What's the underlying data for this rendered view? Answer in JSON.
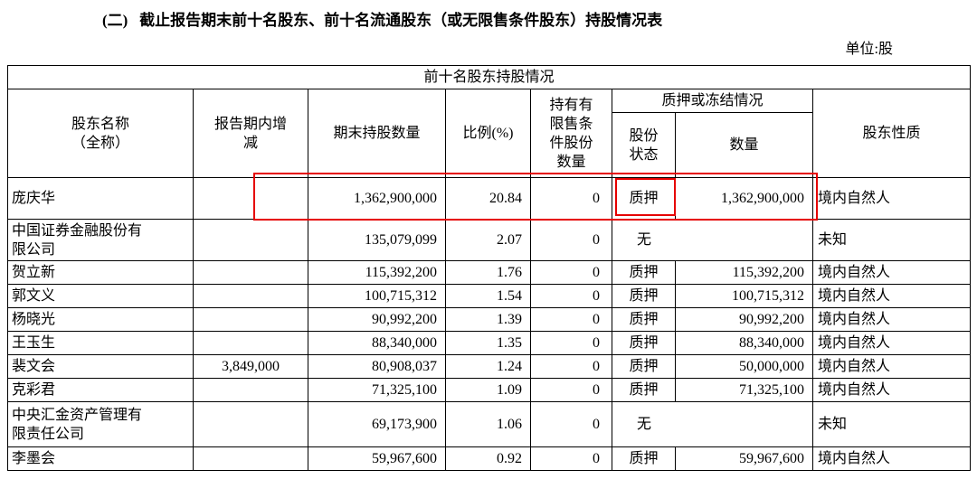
{
  "page": {
    "title": "(二)   截止报告期末前十名股东、前十名流通股东（或无限售条件股东）持股情况表",
    "unit_label": "单位:股"
  },
  "table": {
    "caption": "前十名股东持股情况",
    "headers": {
      "name": "股东名称\n（全称）",
      "change": "报告期内增\n减",
      "shares": "期末持股数量",
      "ratio": "比例(%)",
      "restricted": "持有有\n限售条\n件股份\n数量",
      "pledge_group": "质押或冻结情况",
      "pledge_status": "股份\n状态",
      "pledge_amount": "数量",
      "nature": "股东性质"
    },
    "rows": [
      {
        "name": "庞庆华",
        "change": "",
        "shares": "1,362,900,000",
        "ratio": "20.84",
        "restricted": "0",
        "pledge_status": "质押",
        "pledge_amount": "1,362,900,000",
        "nature": "境内自然人"
      },
      {
        "name": "中国证券金融股份有限公司",
        "change": "",
        "shares": "135,079,099",
        "ratio": "2.07",
        "restricted": "0",
        "pledge_status": "无",
        "pledge_amount": null,
        "nature": "未知"
      },
      {
        "name": "贺立新",
        "change": "",
        "shares": "115,392,200",
        "ratio": "1.76",
        "restricted": "0",
        "pledge_status": "质押",
        "pledge_amount": "115,392,200",
        "nature": "境内自然人"
      },
      {
        "name": "郭文义",
        "change": "",
        "shares": "100,715,312",
        "ratio": "1.54",
        "restricted": "0",
        "pledge_status": "质押",
        "pledge_amount": "100,715,312",
        "nature": "境内自然人"
      },
      {
        "name": "杨晓光",
        "change": "",
        "shares": "90,992,200",
        "ratio": "1.39",
        "restricted": "0",
        "pledge_status": "质押",
        "pledge_amount": "90,992,200",
        "nature": "境内自然人"
      },
      {
        "name": "王玉生",
        "change": "",
        "shares": "88,340,000",
        "ratio": "1.35",
        "restricted": "0",
        "pledge_status": "质押",
        "pledge_amount": "88,340,000",
        "nature": "境内自然人"
      },
      {
        "name": "裴文会",
        "change": "3,849,000",
        "shares": "80,908,037",
        "ratio": "1.24",
        "restricted": "0",
        "pledge_status": "质押",
        "pledge_amount": "50,000,000",
        "nature": "境内自然人"
      },
      {
        "name": "克彩君",
        "change": "",
        "shares": "71,325,100",
        "ratio": "1.09",
        "restricted": "0",
        "pledge_status": "质押",
        "pledge_amount": "71,325,100",
        "nature": "境内自然人"
      },
      {
        "name": "中央汇金资产管理有限责任公司",
        "change": "",
        "shares": "69,173,900",
        "ratio": "1.06",
        "restricted": "0",
        "pledge_status": "无",
        "pledge_amount": null,
        "nature": "未知"
      },
      {
        "name": "李墨会",
        "change": "",
        "shares": "59,967,600",
        "ratio": "0.92",
        "restricted": "0",
        "pledge_status": "质押",
        "pledge_amount": "59,967,600",
        "nature": "境内自然人"
      }
    ]
  },
  "annotations": {
    "highlight_color": "#e60000"
  }
}
